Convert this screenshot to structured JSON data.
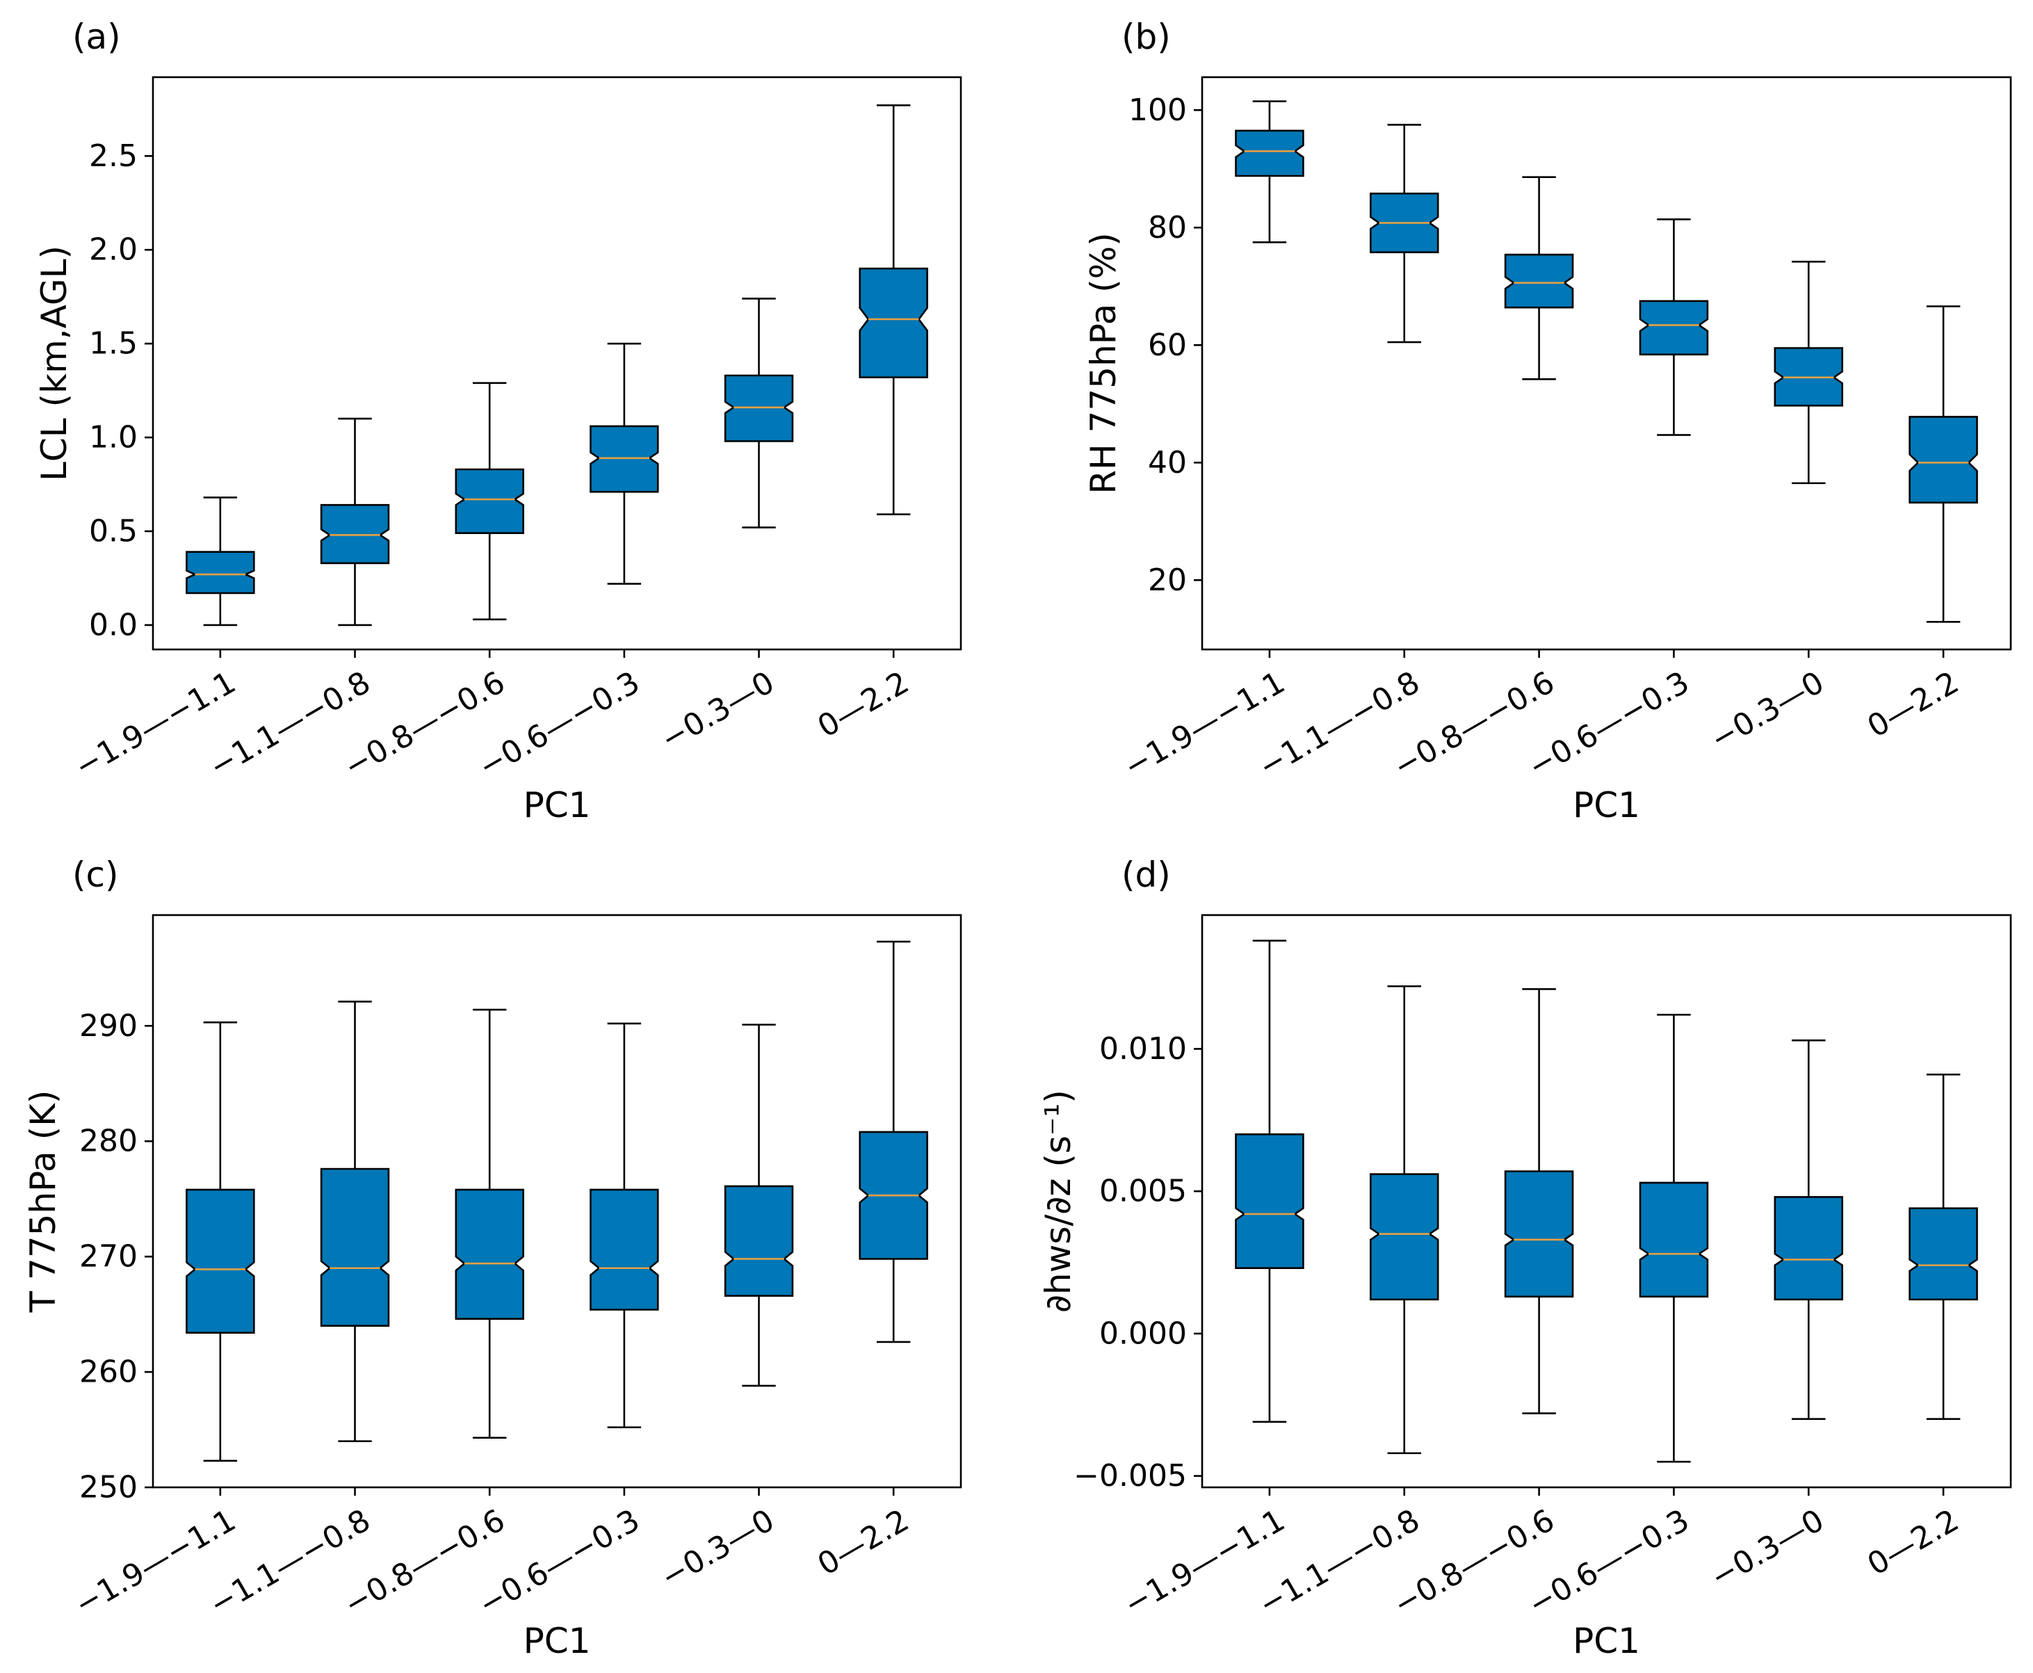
{
  "colors": {
    "box_fill": "#0077b6",
    "median": "#e8a040",
    "edge": "#000000"
  },
  "chart_data": [
    {
      "type": "boxplot",
      "panel": "(a)",
      "xlabel": "PC1",
      "ylabel": "LCL (km,AGL)",
      "categories": [
        "−1.9—−1.1",
        "−1.1—−0.8",
        "−0.8—−0.6",
        "−0.6—−0.3",
        "−0.3—0",
        "0—2.2"
      ],
      "ylim": [
        -0.13,
        2.92
      ],
      "yticks": [
        0.0,
        0.5,
        1.0,
        1.5,
        2.0,
        2.5
      ],
      "ytick_labels": [
        "0.0",
        "0.5",
        "1.0",
        "1.5",
        "2.0",
        "2.5"
      ],
      "boxes": [
        {
          "whislo": 0.0,
          "q1": 0.17,
          "med": 0.27,
          "q3": 0.39,
          "whishi": 0.68,
          "notch_lo": 0.25,
          "notch_hi": 0.29
        },
        {
          "whislo": 0.0,
          "q1": 0.33,
          "med": 0.48,
          "q3": 0.64,
          "whishi": 1.1,
          "notch_lo": 0.45,
          "notch_hi": 0.51
        },
        {
          "whislo": 0.03,
          "q1": 0.49,
          "med": 0.67,
          "q3": 0.83,
          "whishi": 1.29,
          "notch_lo": 0.64,
          "notch_hi": 0.7
        },
        {
          "whislo": 0.22,
          "q1": 0.71,
          "med": 0.89,
          "q3": 1.06,
          "whishi": 1.5,
          "notch_lo": 0.86,
          "notch_hi": 0.92
        },
        {
          "whislo": 0.52,
          "q1": 0.98,
          "med": 1.16,
          "q3": 1.33,
          "whishi": 1.74,
          "notch_lo": 1.13,
          "notch_hi": 1.19
        },
        {
          "whislo": 0.59,
          "q1": 1.32,
          "med": 1.63,
          "q3": 1.9,
          "whishi": 2.77,
          "notch_lo": 1.57,
          "notch_hi": 1.69
        }
      ]
    },
    {
      "type": "boxplot",
      "panel": "(b)",
      "xlabel": "PC1",
      "ylabel": "RH 775hPa (%)",
      "categories": [
        "−1.9—−1.1",
        "−1.1—−0.8",
        "−0.8—−0.6",
        "−0.6—−0.3",
        "−0.3—0",
        "0—2.2"
      ],
      "ylim": [
        8.2,
        105.6
      ],
      "yticks": [
        20,
        40,
        60,
        80,
        100
      ],
      "ytick_labels": [
        "20",
        "40",
        "60",
        "80",
        "100"
      ],
      "boxes": [
        {
          "whislo": 77.5,
          "q1": 88.8,
          "med": 93.0,
          "q3": 96.5,
          "whishi": 101.5,
          "notch_lo": 92.0,
          "notch_hi": 94.0
        },
        {
          "whislo": 60.5,
          "q1": 75.8,
          "med": 80.8,
          "q3": 85.8,
          "whishi": 97.5,
          "notch_lo": 79.8,
          "notch_hi": 81.8
        },
        {
          "whislo": 54.2,
          "q1": 66.4,
          "med": 70.6,
          "q3": 75.4,
          "whishi": 88.6,
          "notch_lo": 69.6,
          "notch_hi": 71.6
        },
        {
          "whislo": 44.7,
          "q1": 58.4,
          "med": 63.4,
          "q3": 67.5,
          "whishi": 81.4,
          "notch_lo": 62.4,
          "notch_hi": 64.4
        },
        {
          "whislo": 36.5,
          "q1": 49.7,
          "med": 54.5,
          "q3": 59.5,
          "whishi": 74.2,
          "notch_lo": 53.5,
          "notch_hi": 55.5
        },
        {
          "whislo": 12.9,
          "q1": 33.2,
          "med": 40.0,
          "q3": 47.8,
          "whishi": 66.6,
          "notch_lo": 38.6,
          "notch_hi": 41.4
        }
      ]
    },
    {
      "type": "boxplot",
      "panel": "(c)",
      "xlabel": "PC1",
      "ylabel": "T 775hPa (K)",
      "categories": [
        "−1.9—−1.1",
        "−1.1—−0.8",
        "−0.8—−0.6",
        "−0.6—−0.3",
        "−0.3—0",
        "0—2.2"
      ],
      "ylim": [
        250.0,
        299.6
      ],
      "yticks": [
        250,
        260,
        270,
        280,
        290
      ],
      "ytick_labels": [
        "250",
        "260",
        "270",
        "280",
        "290"
      ],
      "boxes": [
        {
          "whislo": 252.3,
          "q1": 263.4,
          "med": 268.9,
          "q3": 275.8,
          "whishi": 290.3,
          "notch_lo": 268.3,
          "notch_hi": 269.5
        },
        {
          "whislo": 254.0,
          "q1": 264.0,
          "med": 269.0,
          "q3": 277.6,
          "whishi": 292.1,
          "notch_lo": 268.4,
          "notch_hi": 269.6
        },
        {
          "whislo": 254.3,
          "q1": 264.6,
          "med": 269.4,
          "q3": 275.8,
          "whishi": 291.4,
          "notch_lo": 268.8,
          "notch_hi": 270.0
        },
        {
          "whislo": 255.2,
          "q1": 265.4,
          "med": 269.0,
          "q3": 275.8,
          "whishi": 290.2,
          "notch_lo": 268.4,
          "notch_hi": 269.6
        },
        {
          "whislo": 258.8,
          "q1": 266.6,
          "med": 269.8,
          "q3": 276.1,
          "whishi": 290.1,
          "notch_lo": 269.2,
          "notch_hi": 270.4
        },
        {
          "whislo": 262.6,
          "q1": 269.8,
          "med": 275.3,
          "q3": 280.8,
          "whishi": 297.3,
          "notch_lo": 274.7,
          "notch_hi": 275.9
        }
      ]
    },
    {
      "type": "boxplot",
      "panel": "(d)",
      "xlabel": "PC1",
      "ylabel": "∂hws/∂z (s⁻¹)",
      "categories": [
        "−1.9—−1.1",
        "−1.1—−0.8",
        "−0.8—−0.6",
        "−0.6—−0.3",
        "−0.3—0",
        "0—2.2"
      ],
      "ylim": [
        -0.0054,
        0.0147
      ],
      "yticks": [
        -0.005,
        0.0,
        0.005,
        0.01
      ],
      "ytick_labels": [
        "−0.005",
        "0.000",
        "0.005",
        "0.010"
      ],
      "boxes": [
        {
          "whislo": -0.0031,
          "q1": 0.0023,
          "med": 0.0042,
          "q3": 0.007,
          "whishi": 0.0138,
          "notch_lo": 0.004,
          "notch_hi": 0.0044
        },
        {
          "whislo": -0.0042,
          "q1": 0.0012,
          "med": 0.0035,
          "q3": 0.0056,
          "whishi": 0.0122,
          "notch_lo": 0.0033,
          "notch_hi": 0.0037
        },
        {
          "whislo": -0.0028,
          "q1": 0.0013,
          "med": 0.0033,
          "q3": 0.0057,
          "whishi": 0.0121,
          "notch_lo": 0.0031,
          "notch_hi": 0.0035
        },
        {
          "whislo": -0.0045,
          "q1": 0.0013,
          "med": 0.0028,
          "q3": 0.0053,
          "whishi": 0.0112,
          "notch_lo": 0.0026,
          "notch_hi": 0.003
        },
        {
          "whislo": -0.003,
          "q1": 0.0012,
          "med": 0.0026,
          "q3": 0.0048,
          "whishi": 0.0103,
          "notch_lo": 0.0024,
          "notch_hi": 0.0028
        },
        {
          "whislo": -0.003,
          "q1": 0.0012,
          "med": 0.0024,
          "q3": 0.0044,
          "whishi": 0.0091,
          "notch_lo": 0.0022,
          "notch_hi": 0.0026
        }
      ]
    }
  ]
}
